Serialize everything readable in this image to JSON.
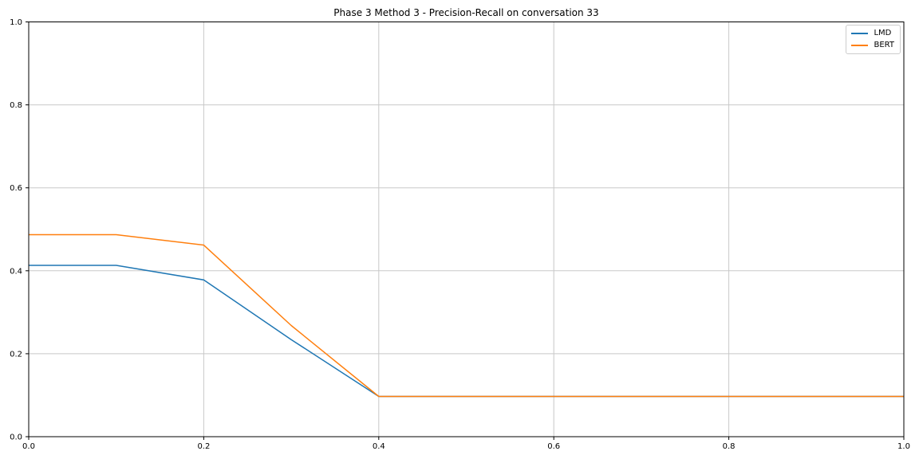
{
  "chart_data": {
    "type": "line",
    "title": "Phase 3 Method 3 - Precision-Recall on conversation 33",
    "xlabel": "",
    "ylabel": "",
    "x": [
      0.0,
      0.1,
      0.2,
      0.3,
      0.4,
      0.5,
      0.6,
      0.7,
      0.8,
      0.9,
      1.0
    ],
    "series": [
      {
        "name": "LMD",
        "color": "#1f77b4",
        "values": [
          0.413,
          0.413,
          0.378,
          0.234,
          0.097,
          0.097,
          0.097,
          0.097,
          0.097,
          0.097,
          0.097
        ]
      },
      {
        "name": "BERT",
        "color": "#ff7f0e",
        "values": [
          0.487,
          0.487,
          0.462,
          0.268,
          0.097,
          0.097,
          0.097,
          0.097,
          0.097,
          0.097,
          0.097
        ]
      }
    ],
    "xlim": [
      0.0,
      1.0
    ],
    "ylim": [
      0.0,
      1.0
    ],
    "xtick_labels": [
      "0.0",
      "0.2",
      "0.4",
      "0.6",
      "0.8",
      "1.0"
    ],
    "ytick_labels": [
      "0.0",
      "0.2",
      "0.4",
      "0.6",
      "0.8",
      "1.0"
    ],
    "xticks": [
      0.0,
      0.2,
      0.4,
      0.6,
      0.8,
      1.0
    ],
    "yticks": [
      0.0,
      0.2,
      0.4,
      0.6,
      0.8,
      1.0
    ],
    "grid": true,
    "legend_position": "upper right"
  },
  "colors": {
    "background": "#ffffff",
    "grid": "#c8c8c8",
    "spine": "#000000",
    "tick_text": "#000000",
    "legend_border": "#cccccc"
  }
}
